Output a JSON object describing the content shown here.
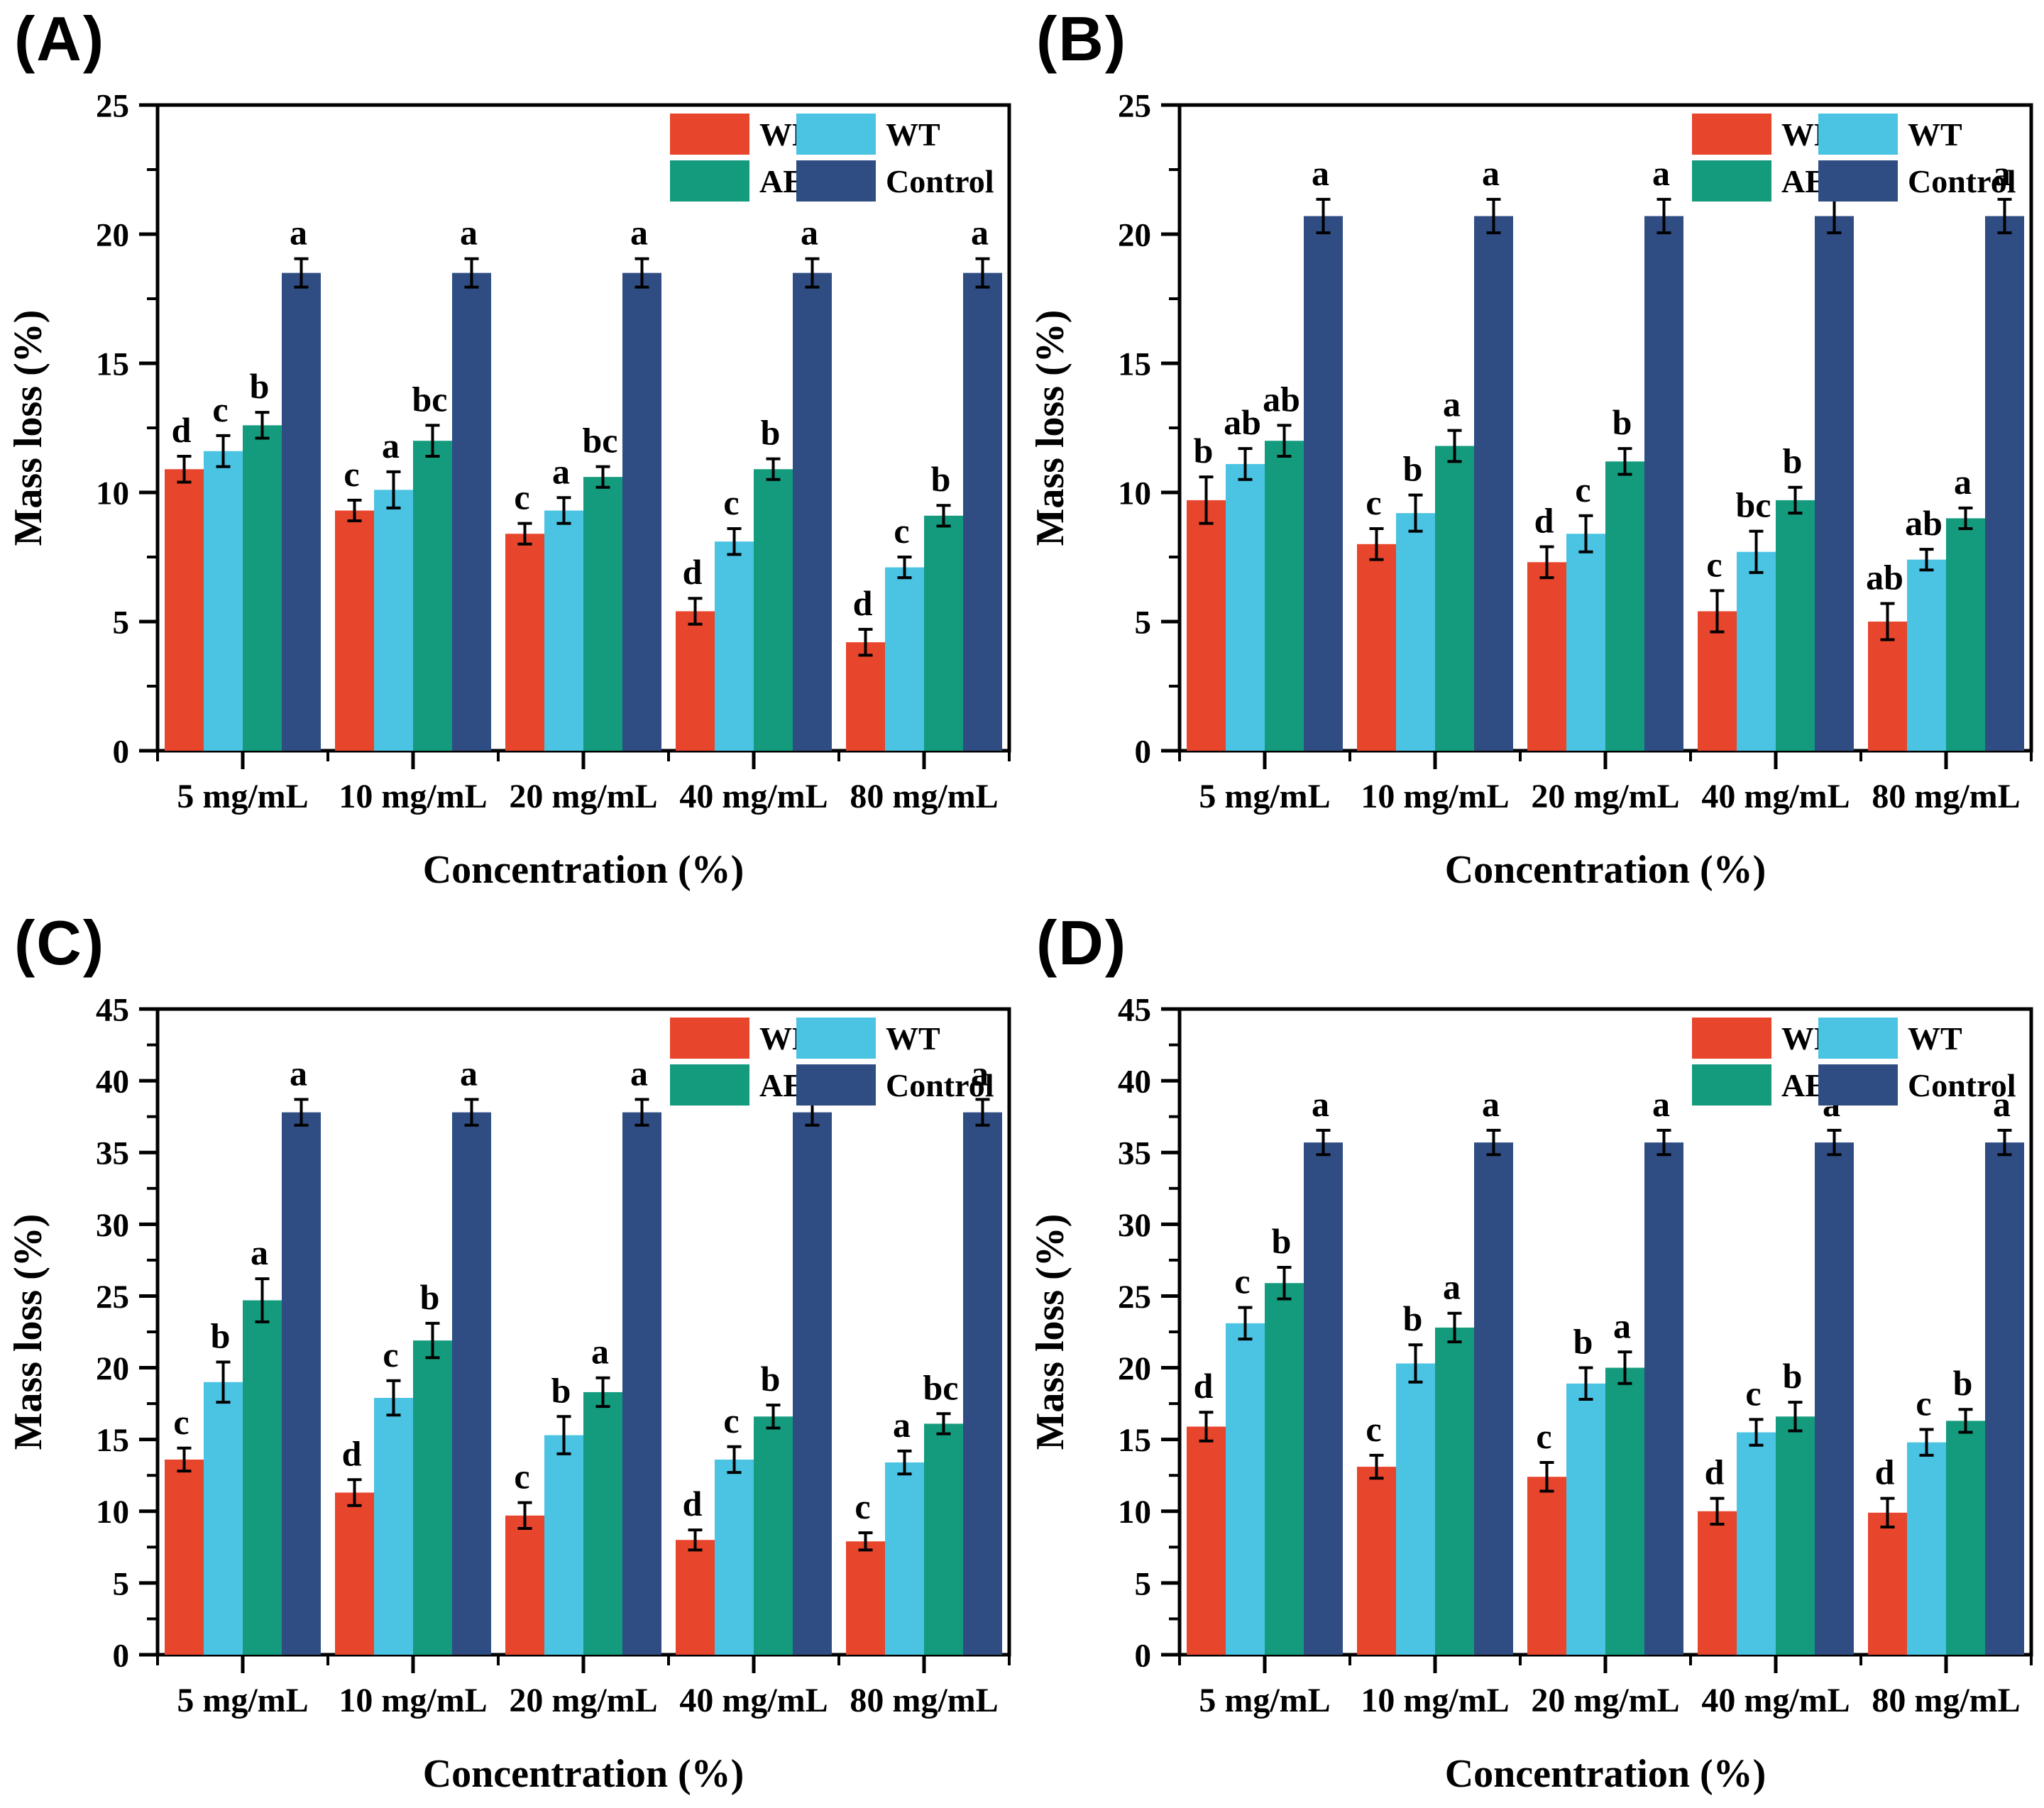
{
  "chart_data": [
    {
      "panel_label": "(A)",
      "type": "bar",
      "title": "",
      "xlabel": "Concentration (%)",
      "ylabel": "Mass loss (%)",
      "categories": [
        "5 mg/mL",
        "10 mg/mL",
        "20 mg/mL",
        "40 mg/mL",
        "80 mg/mL"
      ],
      "ylim": [
        0,
        25
      ],
      "ytick_step": 5,
      "yminor_step": 2.5,
      "grid": false,
      "legend_position": "top-right",
      "legend_rows": [
        [
          "WE",
          "WT"
        ],
        [
          "AE",
          "Control"
        ]
      ],
      "series": [
        {
          "name": "WE",
          "color": "#E8452D",
          "values": [
            10.9,
            9.3,
            8.4,
            5.4,
            4.2
          ],
          "errors": [
            0.5,
            0.4,
            0.4,
            0.5,
            0.5
          ],
          "letters": [
            "d",
            "c",
            "c",
            "d",
            "d"
          ]
        },
        {
          "name": "WT",
          "color": "#4BC3E3",
          "values": [
            11.6,
            10.1,
            9.3,
            8.1,
            7.1
          ],
          "errors": [
            0.6,
            0.7,
            0.5,
            0.5,
            0.4
          ],
          "letters": [
            "c",
            "a",
            "a",
            "c",
            "c"
          ]
        },
        {
          "name": "AE",
          "color": "#149B7E",
          "values": [
            12.6,
            12.0,
            10.6,
            10.9,
            9.1
          ],
          "errors": [
            0.5,
            0.6,
            0.4,
            0.4,
            0.4
          ],
          "letters": [
            "b",
            "bc",
            "bc",
            "b",
            "b"
          ]
        },
        {
          "name": "Control",
          "color": "#2F4D83",
          "values": [
            18.5,
            18.5,
            18.5,
            18.5,
            18.5
          ],
          "errors": [
            0.55,
            0.55,
            0.55,
            0.55,
            0.55
          ],
          "letters": [
            "a",
            "a",
            "a",
            "a",
            "a"
          ]
        }
      ]
    },
    {
      "panel_label": "(B)",
      "type": "bar",
      "title": "",
      "xlabel": "Concentration (%)",
      "ylabel": "Mass loss (%)",
      "categories": [
        "5 mg/mL",
        "10 mg/mL",
        "20 mg/mL",
        "40 mg/mL",
        "80 mg/mL"
      ],
      "ylim": [
        0,
        25
      ],
      "ytick_step": 5,
      "yminor_step": 2.5,
      "grid": false,
      "legend_position": "top-right",
      "legend_rows": [
        [
          "WE",
          "WT"
        ],
        [
          "AE",
          "Control"
        ]
      ],
      "series": [
        {
          "name": "WE",
          "color": "#E8452D",
          "values": [
            9.7,
            8.0,
            7.3,
            5.4,
            5.0
          ],
          "errors": [
            0.9,
            0.6,
            0.6,
            0.8,
            0.7
          ],
          "letters": [
            "b",
            "c",
            "d",
            "c",
            "ab"
          ]
        },
        {
          "name": "WT",
          "color": "#4BC3E3",
          "values": [
            11.1,
            9.2,
            8.4,
            7.7,
            7.4
          ],
          "errors": [
            0.6,
            0.7,
            0.7,
            0.8,
            0.4
          ],
          "letters": [
            "ab",
            "b",
            "c",
            "bc",
            "ab"
          ]
        },
        {
          "name": "AE",
          "color": "#149B7E",
          "values": [
            12.0,
            11.8,
            11.2,
            9.7,
            9.0
          ],
          "errors": [
            0.6,
            0.6,
            0.5,
            0.5,
            0.4
          ],
          "letters": [
            "ab",
            "a",
            "b",
            "b",
            "a"
          ]
        },
        {
          "name": "Control",
          "color": "#2F4D83",
          "values": [
            20.7,
            20.7,
            20.7,
            20.7,
            20.7
          ],
          "errors": [
            0.65,
            0.65,
            0.65,
            0.65,
            0.65
          ],
          "letters": [
            "a",
            "a",
            "a",
            "a",
            "a"
          ]
        }
      ]
    },
    {
      "panel_label": "(C)",
      "type": "bar",
      "title": "",
      "xlabel": "Concentration (%)",
      "ylabel": "Mass loss (%)",
      "categories": [
        "5 mg/mL",
        "10 mg/mL",
        "20 mg/mL",
        "40 mg/mL",
        "80 mg/mL"
      ],
      "ylim": [
        0,
        45
      ],
      "ytick_step": 5,
      "yminor_step": 2.5,
      "grid": false,
      "legend_position": "top-right",
      "legend_rows": [
        [
          "WE",
          "WT"
        ],
        [
          "AE",
          "Control"
        ]
      ],
      "series": [
        {
          "name": "WE",
          "color": "#E8452D",
          "values": [
            13.6,
            11.3,
            9.7,
            8.0,
            7.9
          ],
          "errors": [
            0.8,
            0.9,
            0.9,
            0.7,
            0.6
          ],
          "letters": [
            "c",
            "d",
            "c",
            "d",
            "c"
          ]
        },
        {
          "name": "WT",
          "color": "#4BC3E3",
          "values": [
            19.0,
            17.9,
            15.3,
            13.6,
            13.4
          ],
          "errors": [
            1.4,
            1.2,
            1.3,
            0.9,
            0.8
          ],
          "letters": [
            "b",
            "c",
            "b",
            "c",
            "a"
          ]
        },
        {
          "name": "AE",
          "color": "#149B7E",
          "values": [
            24.7,
            21.9,
            18.3,
            16.6,
            16.1
          ],
          "errors": [
            1.5,
            1.2,
            1.0,
            0.8,
            0.7
          ],
          "letters": [
            "a",
            "b",
            "a",
            "b",
            "bc"
          ]
        },
        {
          "name": "Control",
          "color": "#2F4D83",
          "values": [
            37.8,
            37.8,
            37.8,
            37.8,
            37.8
          ],
          "errors": [
            0.9,
            0.9,
            0.9,
            0.9,
            0.9
          ],
          "letters": [
            "a",
            "a",
            "a",
            "a",
            "a"
          ]
        }
      ]
    },
    {
      "panel_label": "(D)",
      "type": "bar",
      "title": "",
      "xlabel": "Concentration (%)",
      "ylabel": "Mass loss (%)",
      "categories": [
        "5 mg/mL",
        "10 mg/mL",
        "20 mg/mL",
        "40 mg/mL",
        "80 mg/mL"
      ],
      "ylim": [
        0,
        45
      ],
      "ytick_step": 5,
      "yminor_step": 2.5,
      "grid": false,
      "legend_position": "top-right",
      "legend_rows": [
        [
          "WE",
          "WT"
        ],
        [
          "AE",
          "Control"
        ]
      ],
      "series": [
        {
          "name": "WE",
          "color": "#E8452D",
          "values": [
            15.9,
            13.1,
            12.4,
            10.0,
            9.9
          ],
          "errors": [
            1.0,
            0.8,
            1.0,
            0.9,
            1.0
          ],
          "letters": [
            "d",
            "c",
            "c",
            "d",
            "d"
          ]
        },
        {
          "name": "WT",
          "color": "#4BC3E3",
          "values": [
            23.1,
            20.3,
            18.9,
            15.5,
            14.8
          ],
          "errors": [
            1.1,
            1.3,
            1.1,
            0.9,
            0.9
          ],
          "letters": [
            "c",
            "b",
            "b",
            "c",
            "c"
          ]
        },
        {
          "name": "AE",
          "color": "#149B7E",
          "values": [
            25.9,
            22.8,
            20.0,
            16.6,
            16.3
          ],
          "errors": [
            1.1,
            1.0,
            1.1,
            1.0,
            0.8
          ],
          "letters": [
            "b",
            "a",
            "a",
            "b",
            "b"
          ]
        },
        {
          "name": "Control",
          "color": "#2F4D83",
          "values": [
            35.7,
            35.7,
            35.7,
            35.7,
            35.7
          ],
          "errors": [
            0.85,
            0.85,
            0.85,
            0.85,
            0.85
          ],
          "letters": [
            "a",
            "a",
            "a",
            "a",
            "a"
          ]
        }
      ]
    }
  ],
  "colors": {
    "WE": "#E8452D",
    "WT": "#4BC3E3",
    "AE": "#149B7E",
    "Control": "#2F4D83",
    "axis": "#000000",
    "background": "#ffffff"
  }
}
